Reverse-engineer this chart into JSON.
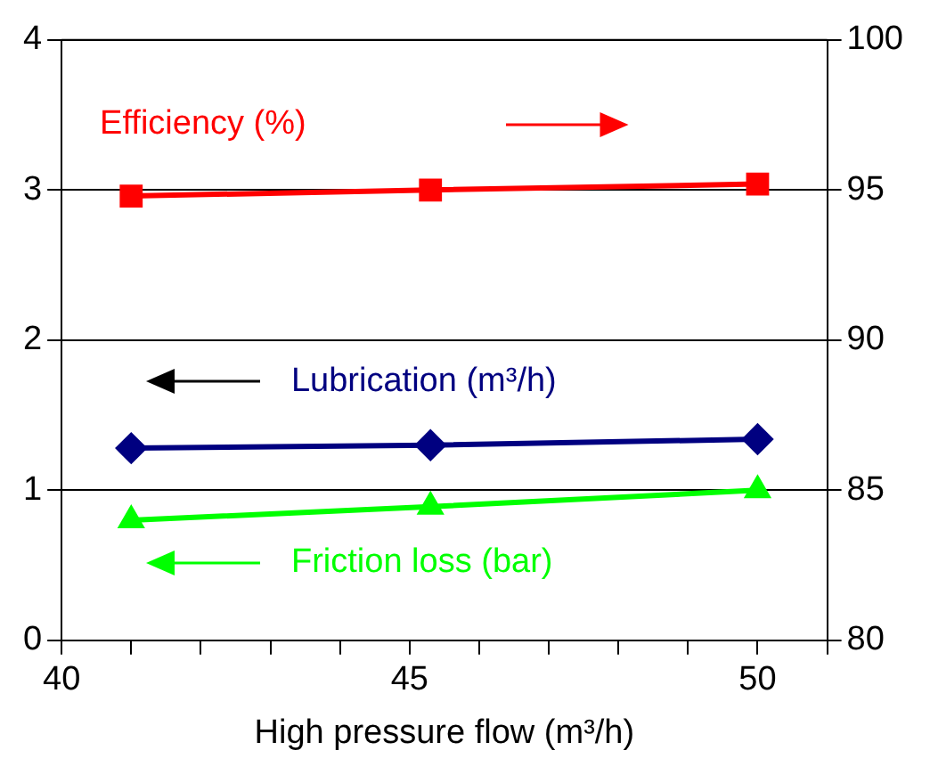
{
  "chart_data": {
    "type": "line",
    "xlabel": "High pressure flow (m³/h)",
    "x": [
      41,
      45.3,
      50
    ],
    "xlim": [
      40,
      51
    ],
    "xticks": [
      40,
      {
        "value": 41,
        "label": null
      },
      {
        "value": 42,
        "label": null
      },
      {
        "value": 43,
        "label": null
      },
      {
        "value": 44,
        "label": null
      },
      45,
      {
        "value": 46,
        "label": null
      },
      {
        "value": 47,
        "label": null
      },
      {
        "value": 48,
        "label": null
      },
      {
        "value": 49,
        "label": null
      },
      50,
      {
        "value": 51,
        "label": null
      }
    ],
    "ylim": [
      0,
      4
    ],
    "yticks": [
      0,
      1,
      2,
      3,
      4
    ],
    "y2lim": [
      80,
      100
    ],
    "y2ticks": [
      80,
      85,
      90,
      95,
      100
    ],
    "grid": "y",
    "legend": "left",
    "line_style": "solid",
    "series": [
      {
        "name": "Efficiency (%)",
        "color": "#ff0000",
        "axis": "y2",
        "marker": "square",
        "values": [
          94.8,
          95.0,
          95.2
        ]
      },
      {
        "name": "Lubrication (m³/h)",
        "color": "#000080",
        "marker": "diamond",
        "values": [
          1.28,
          1.3,
          1.34
        ]
      },
      {
        "name": "Friction loss (bar)",
        "color": "#00ff00",
        "marker": "triangle",
        "values": [
          0.8,
          0.89,
          1.0
        ]
      }
    ]
  }
}
